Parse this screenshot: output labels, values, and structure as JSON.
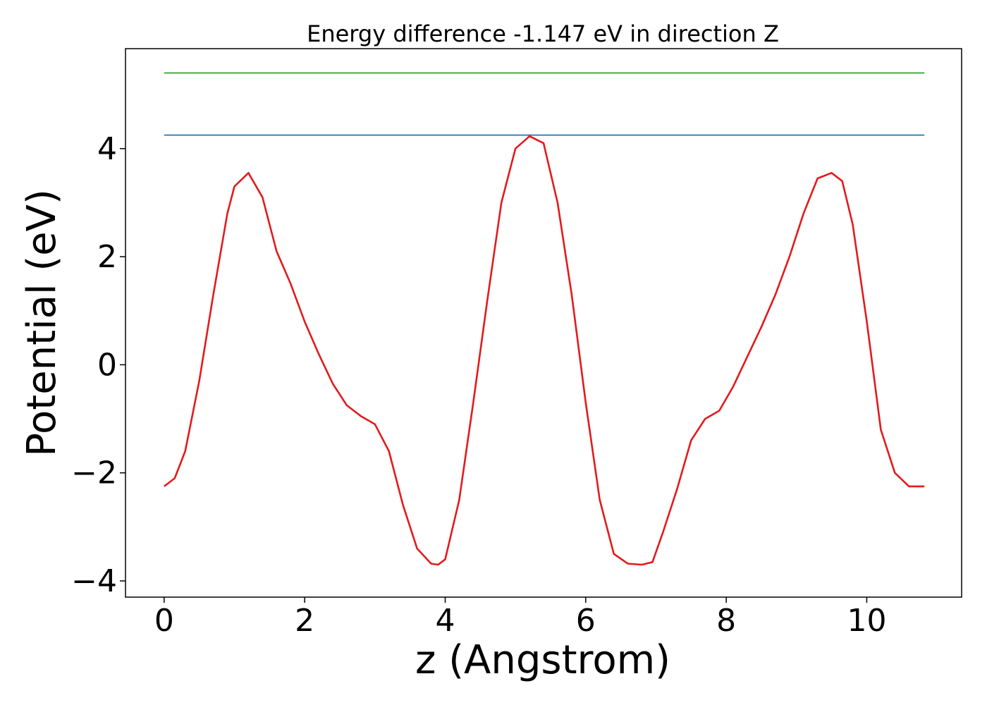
{
  "chart_data": {
    "type": "line",
    "title": "Energy difference -1.147 eV in direction Z",
    "xlabel": "z (Angstrom)",
    "ylabel": "Potential (eV)",
    "xlim": [
      -0.55,
      11.35
    ],
    "ylim": [
      -4.3,
      5.85
    ],
    "xticks": [
      0,
      2,
      4,
      6,
      8,
      10
    ],
    "xtick_labels": [
      "0",
      "2",
      "4",
      "6",
      "8",
      "10"
    ],
    "yticks": [
      -4,
      -2,
      0,
      2,
      4
    ],
    "ytick_labels": [
      "−4",
      "−2",
      "0",
      "2",
      "4"
    ],
    "grid": false,
    "series": [
      {
        "color": "#2ca02c",
        "x": [
          0,
          10.82
        ],
        "y": [
          5.4,
          5.4
        ]
      },
      {
        "color": "#1f77b4",
        "x": [
          0,
          10.82
        ],
        "y": [
          4.25,
          4.25
        ]
      },
      {
        "color": "#e31a1c",
        "x": [
          0,
          0.15,
          0.3,
          0.5,
          0.7,
          0.9,
          1.0,
          1.2,
          1.4,
          1.6,
          1.8,
          2.0,
          2.2,
          2.4,
          2.6,
          2.8,
          3.0,
          3.2,
          3.4,
          3.6,
          3.8,
          3.9,
          4.0,
          4.2,
          4.4,
          4.6,
          4.8,
          5.0,
          5.2,
          5.4,
          5.6,
          5.8,
          6.0,
          6.2,
          6.4,
          6.6,
          6.8,
          6.95,
          7.1,
          7.3,
          7.5,
          7.7,
          7.9,
          8.1,
          8.3,
          8.5,
          8.7,
          8.9,
          9.1,
          9.3,
          9.5,
          9.65,
          9.8,
          10.0,
          10.2,
          10.4,
          10.6,
          10.82
        ],
        "y": [
          -2.25,
          -2.1,
          -1.6,
          -0.3,
          1.3,
          2.8,
          3.3,
          3.55,
          3.1,
          2.1,
          1.5,
          0.8,
          0.2,
          -0.35,
          -0.75,
          -0.95,
          -1.1,
          -1.6,
          -2.6,
          -3.4,
          -3.68,
          -3.7,
          -3.6,
          -2.5,
          -0.7,
          1.2,
          3.0,
          4.0,
          4.23,
          4.1,
          3.0,
          1.3,
          -0.7,
          -2.5,
          -3.5,
          -3.68,
          -3.7,
          -3.65,
          -3.1,
          -2.3,
          -1.4,
          -1.0,
          -0.85,
          -0.4,
          0.15,
          0.7,
          1.3,
          2.0,
          2.8,
          3.45,
          3.55,
          3.4,
          2.6,
          0.8,
          -1.2,
          -2.0,
          -2.25,
          -2.25
        ]
      }
    ]
  }
}
